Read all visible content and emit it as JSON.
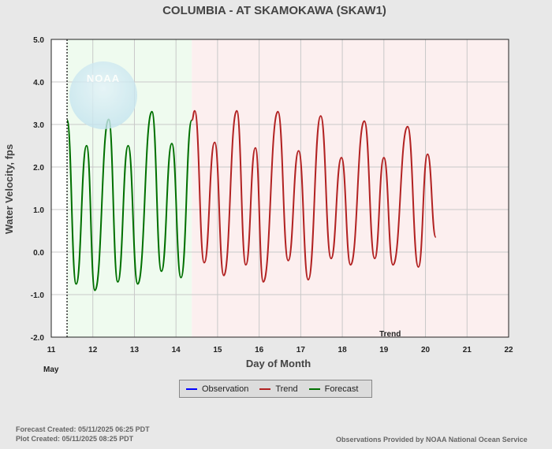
{
  "chart_data": {
    "type": "line",
    "title": "COLUMBIA - AT SKAMOKAWA  (SKAW1)",
    "xlabel": "Day of Month",
    "ylabel": "Water Velocity, fps",
    "xlim": [
      11,
      22
    ],
    "ylim": [
      -2.0,
      5.0
    ],
    "x_ticks": [
      "11",
      "12",
      "13",
      "14",
      "15",
      "16",
      "17",
      "18",
      "19",
      "20",
      "21",
      "22"
    ],
    "y_ticks": [
      "-2.0",
      "-1.0",
      "0.0",
      "1.0",
      "2.0",
      "3.0",
      "4.0",
      "5.0"
    ],
    "month_label": "May",
    "trend_label": "Trend",
    "forecast_start_x": 11.38,
    "forecast_end_x": 14.38,
    "grid": true,
    "colors": {
      "observation": "#0000ff",
      "trend": "#b22222",
      "forecast": "#007000",
      "forecast_bg": "#effbef",
      "trend_bg": "#fcefef"
    },
    "series": [
      {
        "name": "Forecast",
        "color": "#007000",
        "points": [
          [
            11.38,
            3.1
          ],
          [
            11.6,
            -0.75
          ],
          [
            11.85,
            2.5
          ],
          [
            12.05,
            -0.9
          ],
          [
            12.38,
            3.12
          ],
          [
            12.6,
            -0.7
          ],
          [
            12.85,
            2.5
          ],
          [
            13.08,
            -0.75
          ],
          [
            13.42,
            3.3
          ],
          [
            13.65,
            -0.45
          ],
          [
            13.9,
            2.55
          ],
          [
            14.12,
            -0.6
          ],
          [
            14.38,
            3.1
          ]
        ]
      },
      {
        "name": "Trend",
        "color": "#b22222",
        "points": [
          [
            14.38,
            3.1
          ],
          [
            14.45,
            3.32
          ],
          [
            14.68,
            -0.25
          ],
          [
            14.93,
            2.58
          ],
          [
            15.15,
            -0.55
          ],
          [
            15.46,
            3.32
          ],
          [
            15.68,
            -0.3
          ],
          [
            15.91,
            2.45
          ],
          [
            16.1,
            -0.7
          ],
          [
            16.45,
            3.3
          ],
          [
            16.7,
            -0.2
          ],
          [
            16.95,
            2.38
          ],
          [
            17.18,
            -0.65
          ],
          [
            17.48,
            3.2
          ],
          [
            17.73,
            -0.15
          ],
          [
            17.98,
            2.22
          ],
          [
            18.2,
            -0.3
          ],
          [
            18.53,
            3.08
          ],
          [
            18.78,
            -0.15
          ],
          [
            19.0,
            2.22
          ],
          [
            19.22,
            -0.3
          ],
          [
            19.57,
            2.95
          ],
          [
            19.83,
            -0.35
          ],
          [
            20.05,
            2.3
          ],
          [
            20.25,
            0.35
          ]
        ]
      },
      {
        "name": "Observation",
        "color": "#0000ff",
        "points": []
      }
    ],
    "legend": [
      "Observation",
      "Trend",
      "Forecast"
    ]
  },
  "logo": {
    "text": "NOAA"
  },
  "footer": {
    "forecast_created": "Forecast Created: 05/11/2025 06:25 PDT",
    "plot_created": "Plot Created: 05/11/2025 08:25 PDT",
    "credit": "Observations Provided by NOAA National Ocean Service"
  }
}
